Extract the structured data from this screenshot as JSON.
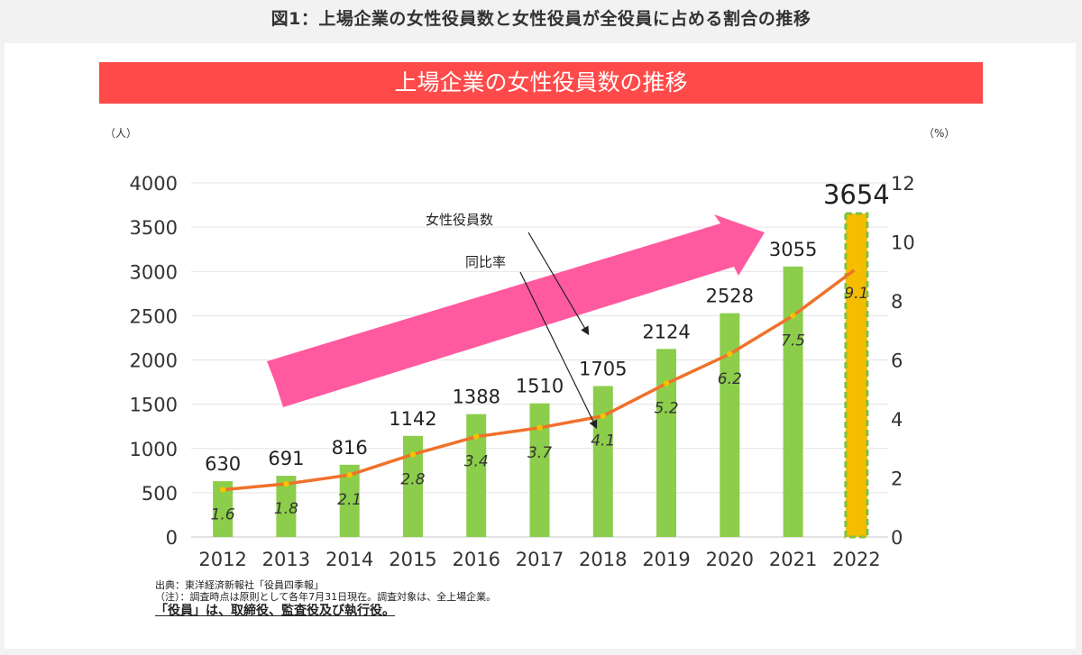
{
  "figure_caption": "図1：上場企業の女性役員数と女性役員が全役員に占める割合の推移",
  "banner_title": "上場企業の女性役員数の推移",
  "colors": {
    "banner": "#ff4a4a",
    "bar": "#8ccd4b",
    "bar_highlight": "#f5bd00",
    "bar_highlight_border": "#7fc241",
    "line": "#f0712b",
    "marker": "#f5c400",
    "arrow": "#ff5aa0"
  },
  "chart_data": {
    "type": "bar",
    "title": "上場企業の女性役員数の推移",
    "categories": [
      "2012",
      "2013",
      "2014",
      "2015",
      "2016",
      "2017",
      "2018",
      "2019",
      "2020",
      "2021",
      "2022"
    ],
    "series": [
      {
        "name": "女性役員数",
        "type": "bar",
        "axis": "left",
        "values": [
          630,
          691,
          816,
          1142,
          1388,
          1510,
          1705,
          2124,
          2528,
          3055,
          3654
        ],
        "labels": [
          "630",
          "691",
          "816",
          "1142",
          "1388",
          "1510",
          "1705",
          "2124",
          "2528",
          "3055",
          "3654"
        ]
      },
      {
        "name": "同比率",
        "type": "line",
        "axis": "right",
        "values": [
          1.6,
          1.8,
          2.1,
          2.8,
          3.4,
          3.7,
          4.1,
          5.2,
          6.2,
          7.5,
          9.1
        ],
        "labels": [
          "1.6",
          "1.8",
          "2.1",
          "2.8",
          "3.4",
          "3.7",
          "4.1",
          "5.2",
          "6.2",
          "7.5",
          "9.1"
        ]
      }
    ],
    "y_left": {
      "unit": "（人）",
      "ylim": [
        0,
        4000
      ],
      "ticks": [
        "0",
        "500",
        "1000",
        "1500",
        "2000",
        "2500",
        "3000",
        "3500",
        "4000"
      ]
    },
    "y_right": {
      "unit": "（%）",
      "ylim": [
        0,
        12
      ],
      "ticks": [
        "0",
        "2",
        "4",
        "6",
        "8",
        "10",
        "12"
      ]
    },
    "annotations": {
      "bar_series_label": "女性役員数",
      "line_series_label": "同比率"
    },
    "highlight_index": 10,
    "grid": true
  },
  "notes": [
    "出典：東洋経済新報社「役員四季報」",
    "（注）：調査時点は原則として各年7月31日現在。調査対象は、全上場企業。",
    "「役員」は、取締役、監査役及び執行役。"
  ]
}
